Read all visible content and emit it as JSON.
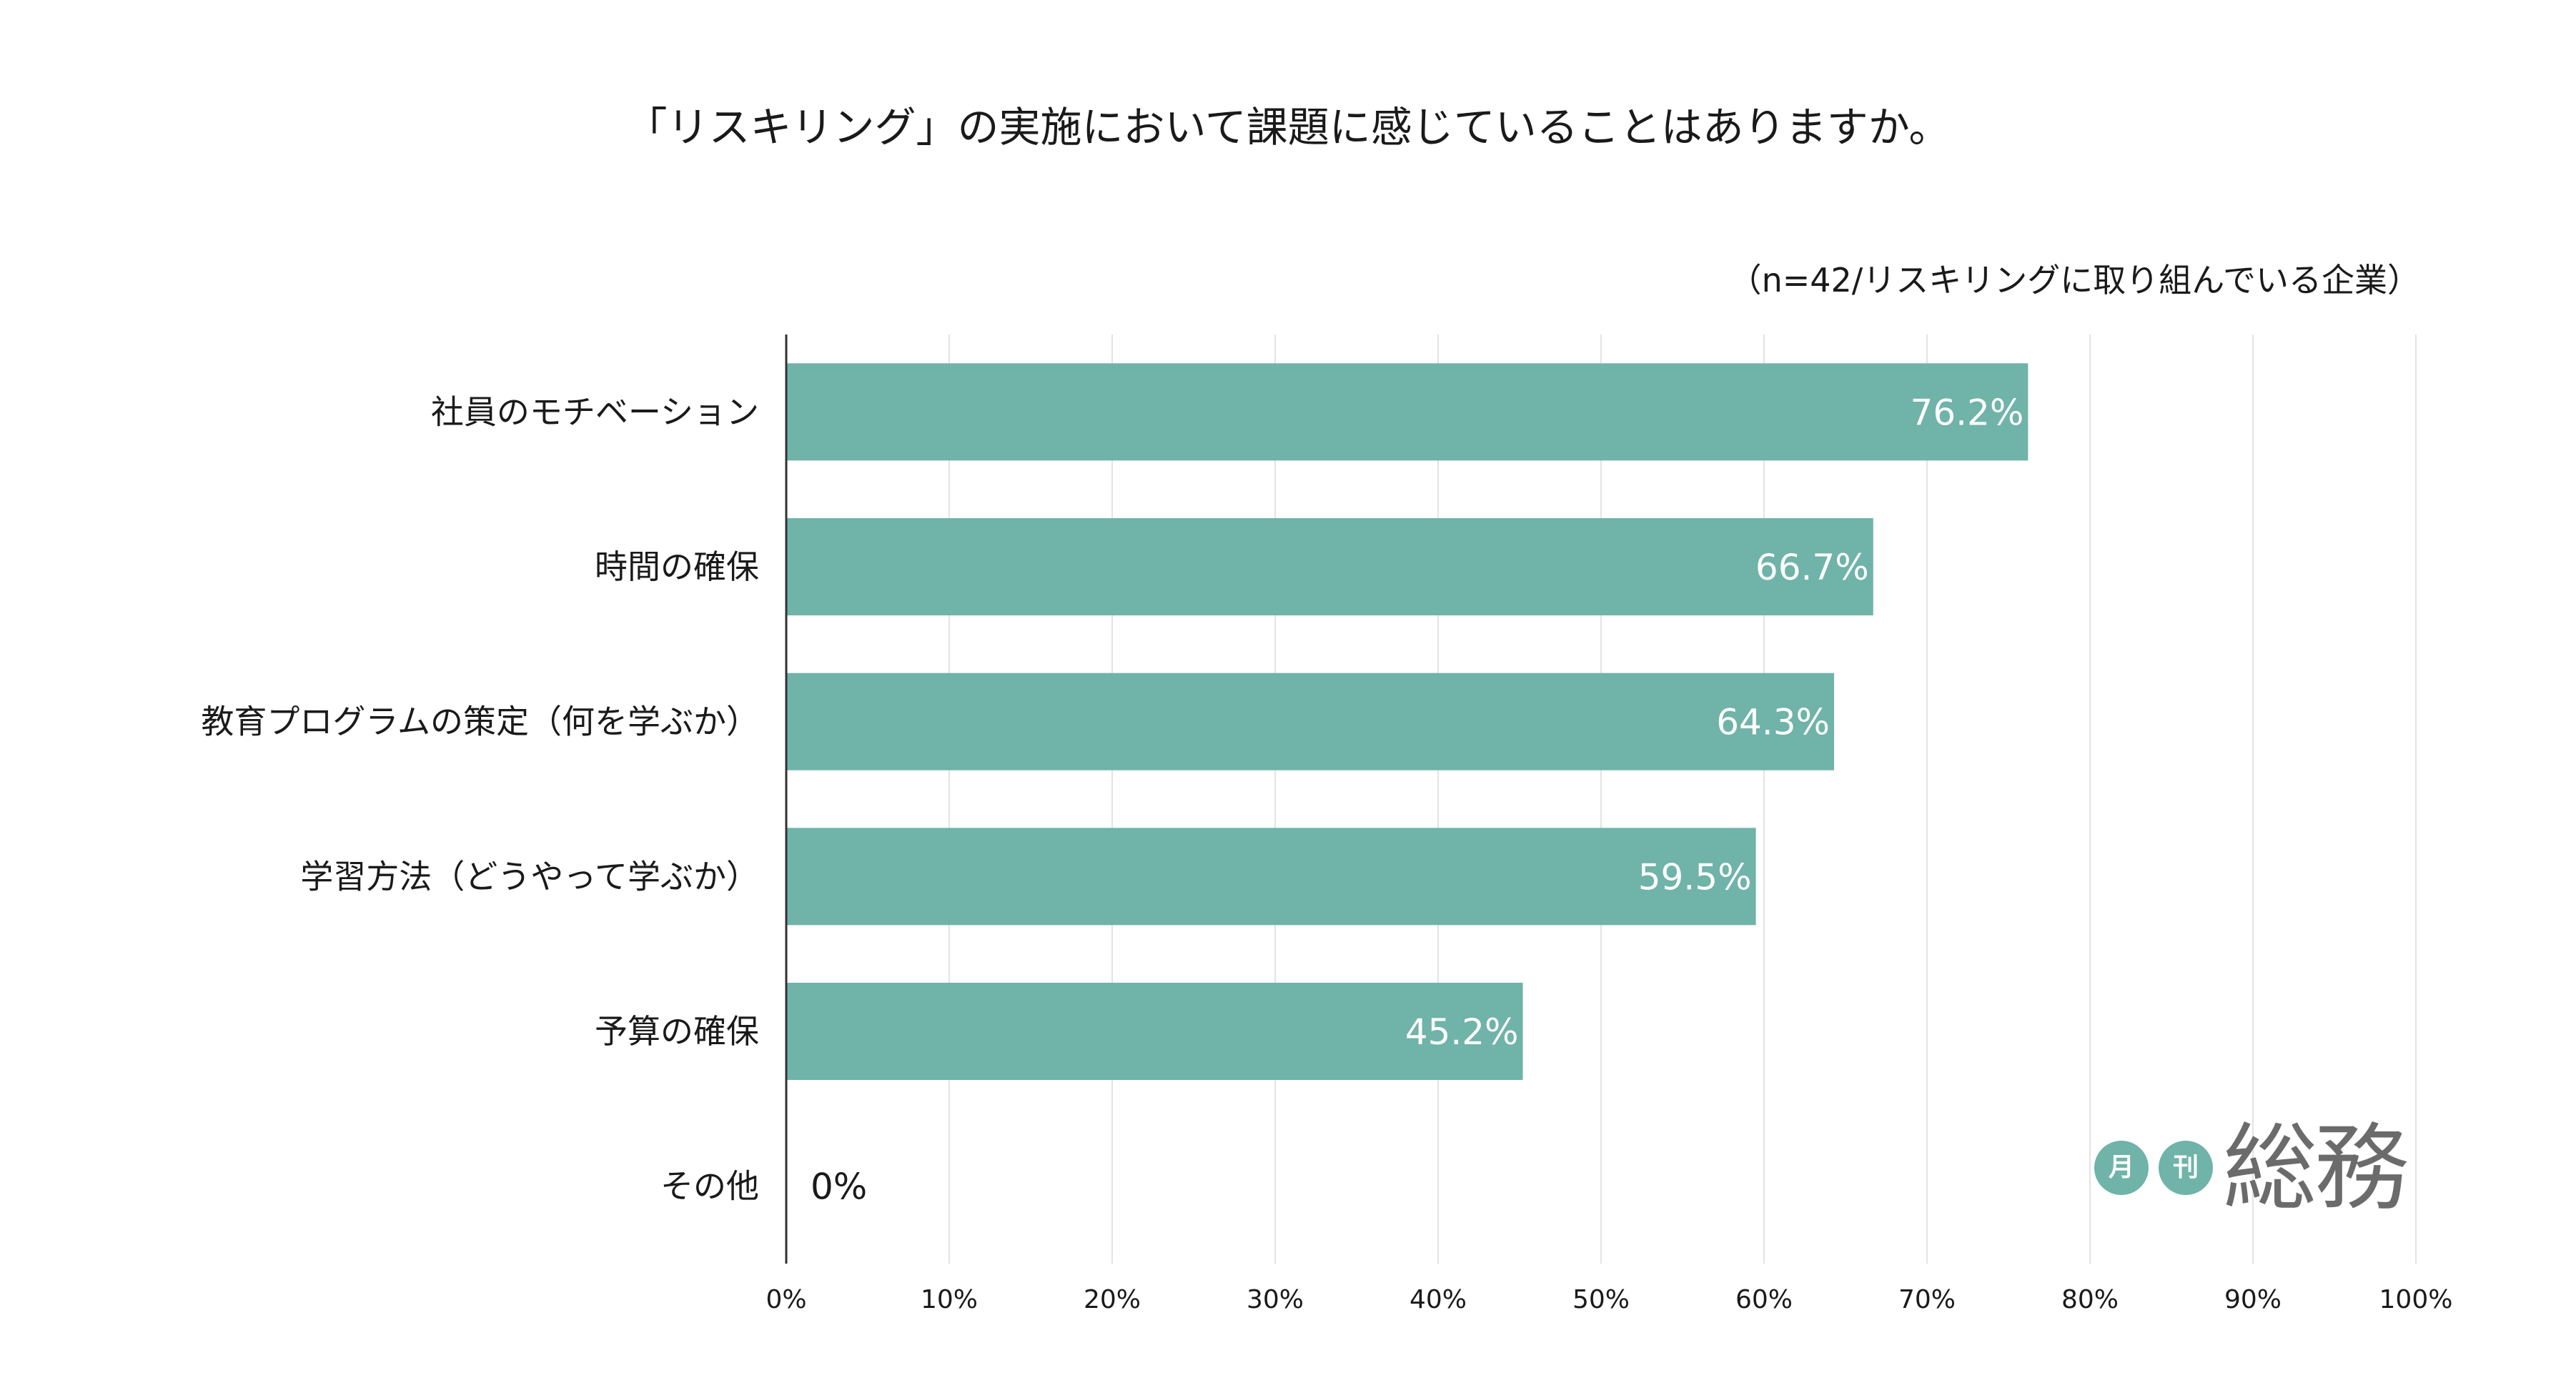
{
  "chart_data": {
    "type": "bar",
    "orientation": "horizontal",
    "title": "「リスキリング」の実施において課題に感じていることはありますか。",
    "subtitle": "（n=42/リスキリングに取り組んでいる企業）",
    "categories": [
      "社員のモチベーション",
      "時間の確保",
      "教育プログラムの策定（何を学ぶか）",
      "学習方法（どうやって学ぶか）",
      "予算の確保",
      "その他"
    ],
    "values": [
      76.2,
      66.7,
      64.3,
      59.5,
      45.2,
      0
    ],
    "data_labels": [
      "76.2%",
      "66.7%",
      "64.3%",
      "59.5%",
      "45.2%",
      "0%"
    ],
    "xlim": [
      0,
      100
    ],
    "x_ticks": [
      0,
      10,
      20,
      30,
      40,
      50,
      60,
      70,
      80,
      90,
      100
    ],
    "x_tick_labels": [
      "0%",
      "10%",
      "20%",
      "30%",
      "40%",
      "50%",
      "60%",
      "70%",
      "80%",
      "90%",
      "100%"
    ],
    "xlabel": "",
    "ylabel": "",
    "grid": true,
    "legend": "none",
    "bar_color": "#6fb3a9"
  },
  "logo": {
    "circle_1": "月",
    "circle_2": "刊",
    "main_text": "総務",
    "circle_color": "#6fb3a9",
    "text_color": "#6b6b6b"
  }
}
